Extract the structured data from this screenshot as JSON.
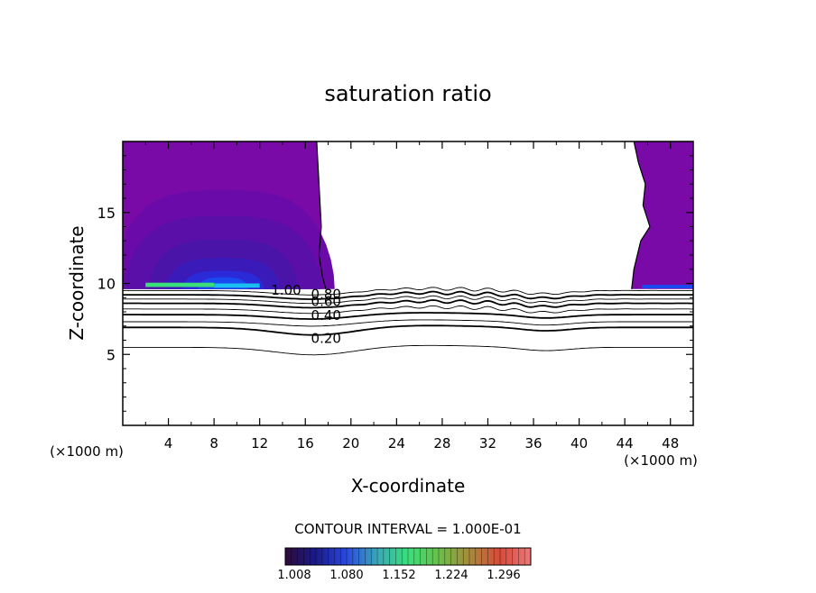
{
  "chart_data": {
    "type": "contour",
    "title": "saturation ratio",
    "xlabel": "X-coordinate",
    "ylabel": "Z-coordinate",
    "x_unit_left": "(×1000 m)",
    "x_unit_right": "(×1000 m)",
    "xlim": [
      0,
      50
    ],
    "ylim": [
      0,
      20
    ],
    "x_ticks": [
      4,
      8,
      12,
      16,
      20,
      24,
      28,
      32,
      36,
      40,
      44,
      48
    ],
    "y_ticks": [
      5,
      10,
      15
    ],
    "contour_interval_text": "CONTOUR INTERVAL = 1.000E-01",
    "contour_labels": [
      {
        "text": "1.00",
        "x": 13.0,
        "z": 9.6
      },
      {
        "text": "0.80",
        "x": 16.5,
        "z": 9.3
      },
      {
        "text": "0.60",
        "x": 16.5,
        "z": 8.8
      },
      {
        "text": "0.40",
        "x": 16.5,
        "z": 7.8
      },
      {
        "text": "0.20",
        "x": 16.5,
        "z": 6.2
      }
    ],
    "contour_lines": [
      {
        "value": 0.9,
        "z": 9.5
      },
      {
        "value": 0.8,
        "z": 9.2
      },
      {
        "value": 0.7,
        "z": 8.9
      },
      {
        "value": 0.6,
        "z": 8.6
      },
      {
        "value": 0.5,
        "z": 8.2
      },
      {
        "value": 0.4,
        "z": 7.8
      },
      {
        "value": 0.3,
        "z": 7.3
      },
      {
        "value": 0.2,
        "z": 6.9
      },
      {
        "value": 0.1,
        "z": 5.5
      }
    ],
    "colorbar": {
      "ticks": [
        "1.008",
        "1.080",
        "1.152",
        "1.224",
        "1.296"
      ],
      "colors": [
        "#2e0a3a",
        "#1a1a8a",
        "#2a4adf",
        "#3aa8b8",
        "#3adf7a",
        "#6abf4a",
        "#a88a3a",
        "#d84a3a",
        "#e87a7a"
      ]
    },
    "fill_colors": [
      "#7a0aa8",
      "#6a0aa8",
      "#5a10a8",
      "#4a14a8",
      "#3a1ab8",
      "#2a2ad8",
      "#1a4aef",
      "#1abfef",
      "#3adf7a"
    ]
  }
}
